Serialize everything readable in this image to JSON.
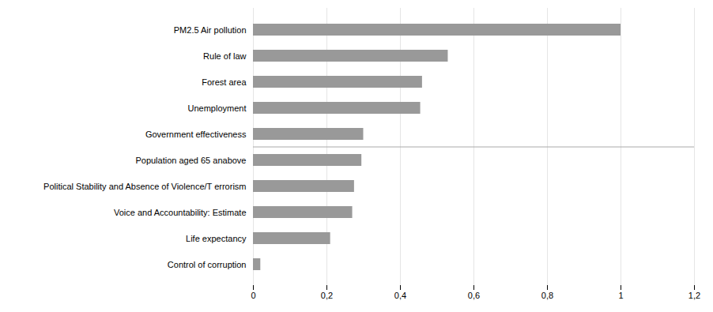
{
  "chart_data": {
    "type": "bar",
    "orientation": "horizontal",
    "categories": [
      "PM2.5 Air pollution",
      "Rule of law",
      "Forest area",
      "Unemployment",
      "Government effectiveness",
      "Population aged 65 anabove",
      "Political Stability and Absence of Violence/T errorism",
      "Voice and Accountability: Estimate",
      "Life expectancy",
      "Control of corruption"
    ],
    "values": [
      1.0,
      0.53,
      0.46,
      0.455,
      0.3,
      0.295,
      0.275,
      0.27,
      0.21,
      0.02
    ],
    "color": "#999999",
    "xlim": [
      0,
      1.2
    ],
    "xticks": [
      0,
      {
        "value": 0.2,
        "label": "0,2"
      },
      {
        "value": 0.4,
        "label": "0,4"
      },
      {
        "value": 0.6,
        "label": "0,6"
      },
      {
        "value": 0.8,
        "label": "0,8"
      },
      1,
      {
        "value": 1.2,
        "label": "1,2"
      }
    ],
    "grid": true
  }
}
